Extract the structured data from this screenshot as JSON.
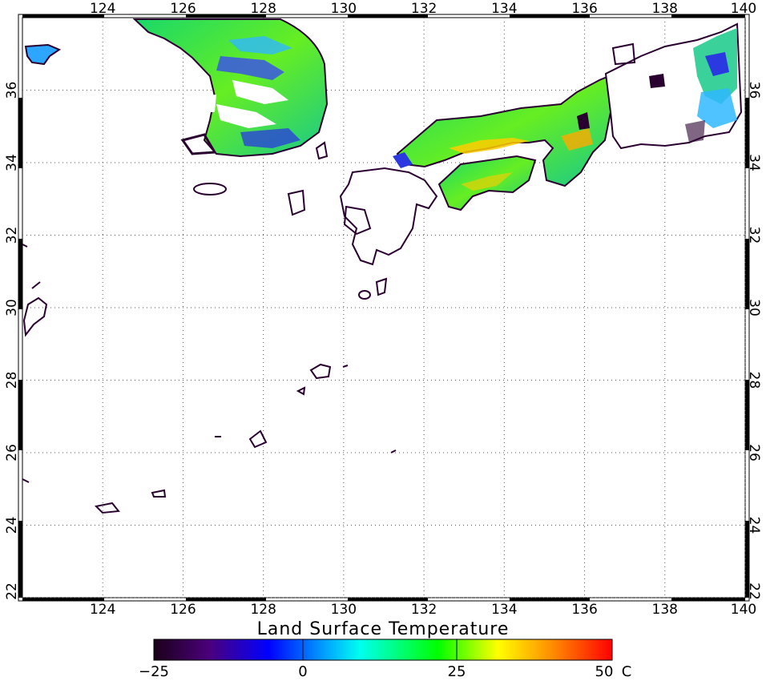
{
  "map": {
    "title": "Land Surface Temperature",
    "lon_range": [
      122,
      140
    ],
    "lat_range": [
      22,
      38
    ],
    "grid": "dotted, every 2 degrees",
    "lon_ticks": [
      "124",
      "126",
      "128",
      "130",
      "132",
      "134",
      "136",
      "138",
      "140"
    ],
    "lat_ticks": [
      "22",
      "24",
      "26",
      "28",
      "30",
      "32",
      "34",
      "36"
    ],
    "coastline_color": "#2a0030",
    "regions": [
      "Korean Peninsula",
      "Kyushu",
      "Shikoku",
      "Chugoku",
      "Kinki",
      "Chubu / Kanto",
      "Ryukyu Islands",
      "Taiwan coast"
    ]
  },
  "colorbar": {
    "unit": "C",
    "min_label": "−25",
    "tick_labels": [
      "−25",
      "0",
      "25",
      "50"
    ],
    "values": [
      -25,
      0,
      25,
      50
    ],
    "colors": [
      "#1a0018",
      "#4b007a",
      "#0000ff",
      "#00e5ff",
      "#00ff00",
      "#ffff00",
      "#ff8c00",
      "#ff0000"
    ]
  }
}
